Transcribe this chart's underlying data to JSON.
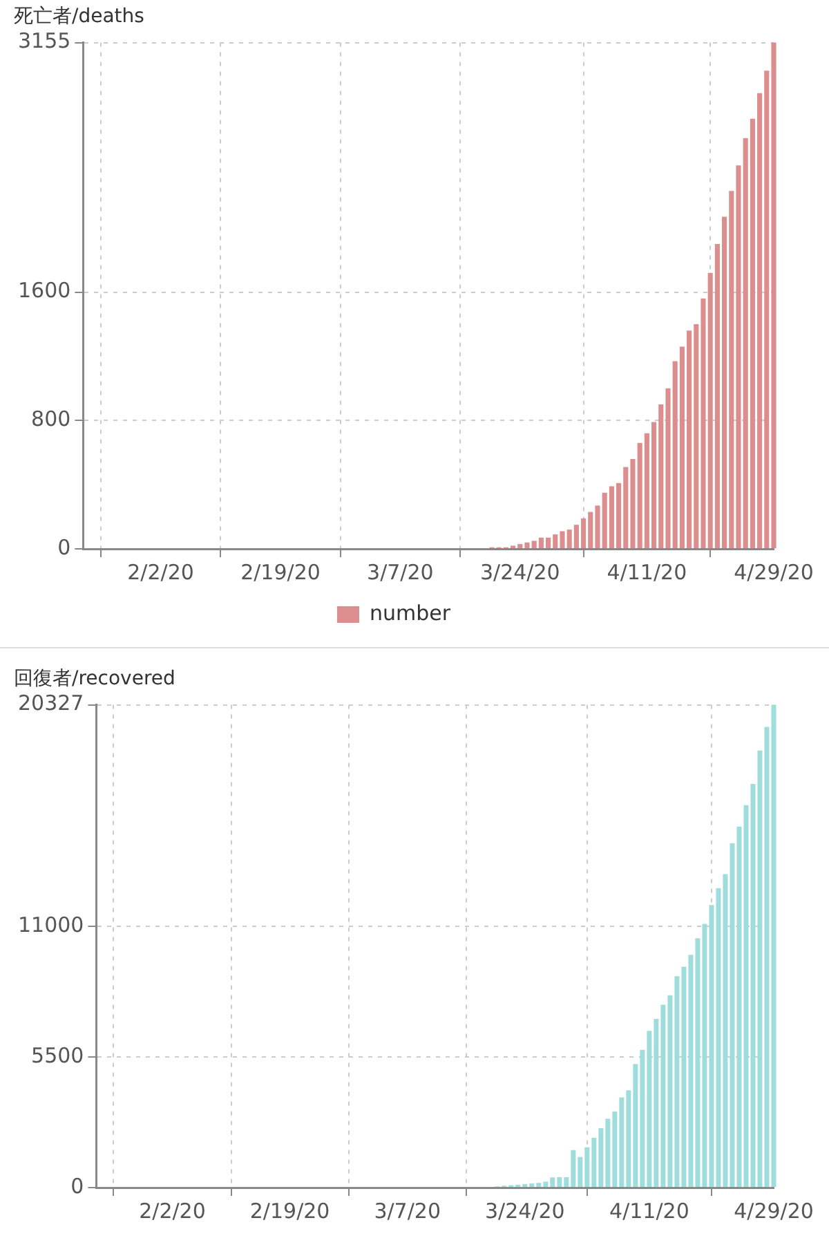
{
  "chart_data": [
    {
      "type": "bar",
      "title": "死亡者/deaths",
      "x": [
        "--03-10",
        "--03-11",
        "--03-12",
        "--03-13",
        "--03-14",
        "--03-15",
        "--03-16",
        "--03-17",
        "--03-18",
        "--03-19",
        "--03-20",
        "--03-21",
        "--03-22",
        "--03-23",
        "--03-24",
        "--03-25",
        "--03-26",
        "--03-27",
        "--03-28",
        "--03-29",
        "--03-30",
        "--03-31",
        "--04-01",
        "--04-02",
        "--04-03",
        "--04-04",
        "--04-05",
        "--04-06",
        "--04-07",
        "--04-08",
        "--04-09",
        "--04-10",
        "--04-11",
        "--04-12",
        "--04-13",
        "--04-14",
        "--04-15",
        "--04-16",
        "--04-17",
        "--04-18",
        "--04-19",
        "--04-20",
        "--04-21",
        "--04-22",
        "--04-23",
        "--04-24",
        "--04-25",
        "--04-26",
        "--04-27",
        "--04-28",
        "--04-29"
      ],
      "series": [
        {
          "name": "number",
          "color": "#dc8e8e",
          "values": [
            0,
            0,
            0,
            0,
            0,
            0,
            0,
            0,
            0,
            0,
            10,
            10,
            10,
            20,
            30,
            40,
            50,
            70,
            70,
            90,
            110,
            120,
            150,
            190,
            230,
            270,
            350,
            390,
            410,
            510,
            560,
            660,
            720,
            790,
            900,
            1000,
            1170,
            1260,
            1360,
            1400,
            1560,
            1720,
            1900,
            2070,
            2230,
            2390,
            2560,
            2680,
            2840,
            2980,
            3155
          ]
        }
      ],
      "xlim": [
        "--01-22",
        "--04-29"
      ],
      "xticks": [
        {
          "value": "--02-02",
          "label": "2/2/20"
        },
        {
          "value": "--02-19",
          "label": "2/19/20"
        },
        {
          "value": "--03-07",
          "label": "3/7/20"
        },
        {
          "value": "--03-24",
          "label": "3/24/20"
        },
        {
          "value": "--04-11",
          "label": "4/11/20"
        },
        {
          "value": "--04-29",
          "label": "4/29/20"
        }
      ],
      "ylim": [
        0,
        3155
      ],
      "yticks": [
        0,
        800,
        1600,
        3155
      ],
      "grid": true,
      "legend": "bottom"
    },
    {
      "type": "bar",
      "title": "回復者/recovered",
      "x": [
        "--03-10",
        "--03-11",
        "--03-12",
        "--03-13",
        "--03-14",
        "--03-15",
        "--03-16",
        "--03-17",
        "--03-18",
        "--03-19",
        "--03-20",
        "--03-21",
        "--03-22",
        "--03-23",
        "--03-24",
        "--03-25",
        "--03-26",
        "--03-27",
        "--03-28",
        "--03-29",
        "--03-30",
        "--03-31",
        "--04-01",
        "--04-02",
        "--04-03",
        "--04-04",
        "--04-05",
        "--04-06",
        "--04-07",
        "--04-08",
        "--04-09",
        "--04-10",
        "--04-11",
        "--04-12",
        "--04-13",
        "--04-14",
        "--04-15",
        "--04-16",
        "--04-17",
        "--04-18",
        "--04-19",
        "--04-20",
        "--04-21",
        "--04-22",
        "--04-23",
        "--04-24",
        "--04-25",
        "--04-26",
        "--04-27",
        "--04-28",
        "--04-29"
      ],
      "series": [
        {
          "color": "#9fdcdc",
          "values": [
            0,
            0,
            0,
            0,
            0,
            0,
            0,
            0,
            0,
            0,
            50,
            80,
            100,
            120,
            150,
            180,
            200,
            250,
            430,
            440,
            440,
            1580,
            1290,
            1700,
            2100,
            2500,
            2900,
            3200,
            3800,
            4100,
            5200,
            5800,
            6600,
            7100,
            7700,
            8100,
            8900,
            9300,
            9800,
            10500,
            11100,
            11900,
            12600,
            13200,
            14500,
            15200,
            16100,
            17000,
            18400,
            19400,
            20327
          ]
        }
      ],
      "xlim": [
        "--01-22",
        "--04-29"
      ],
      "xticks": [
        {
          "value": "--02-02",
          "label": "2/2/20"
        },
        {
          "value": "--02-19",
          "label": "2/19/20"
        },
        {
          "value": "--03-07",
          "label": "3/7/20"
        },
        {
          "value": "--03-24",
          "label": "3/24/20"
        },
        {
          "value": "--04-11",
          "label": "4/11/20"
        },
        {
          "value": "--04-29",
          "label": "4/29/20"
        }
      ],
      "ylim": [
        0,
        20327
      ],
      "yticks": [
        0,
        5500,
        11000,
        20327
      ],
      "grid": true
    }
  ]
}
